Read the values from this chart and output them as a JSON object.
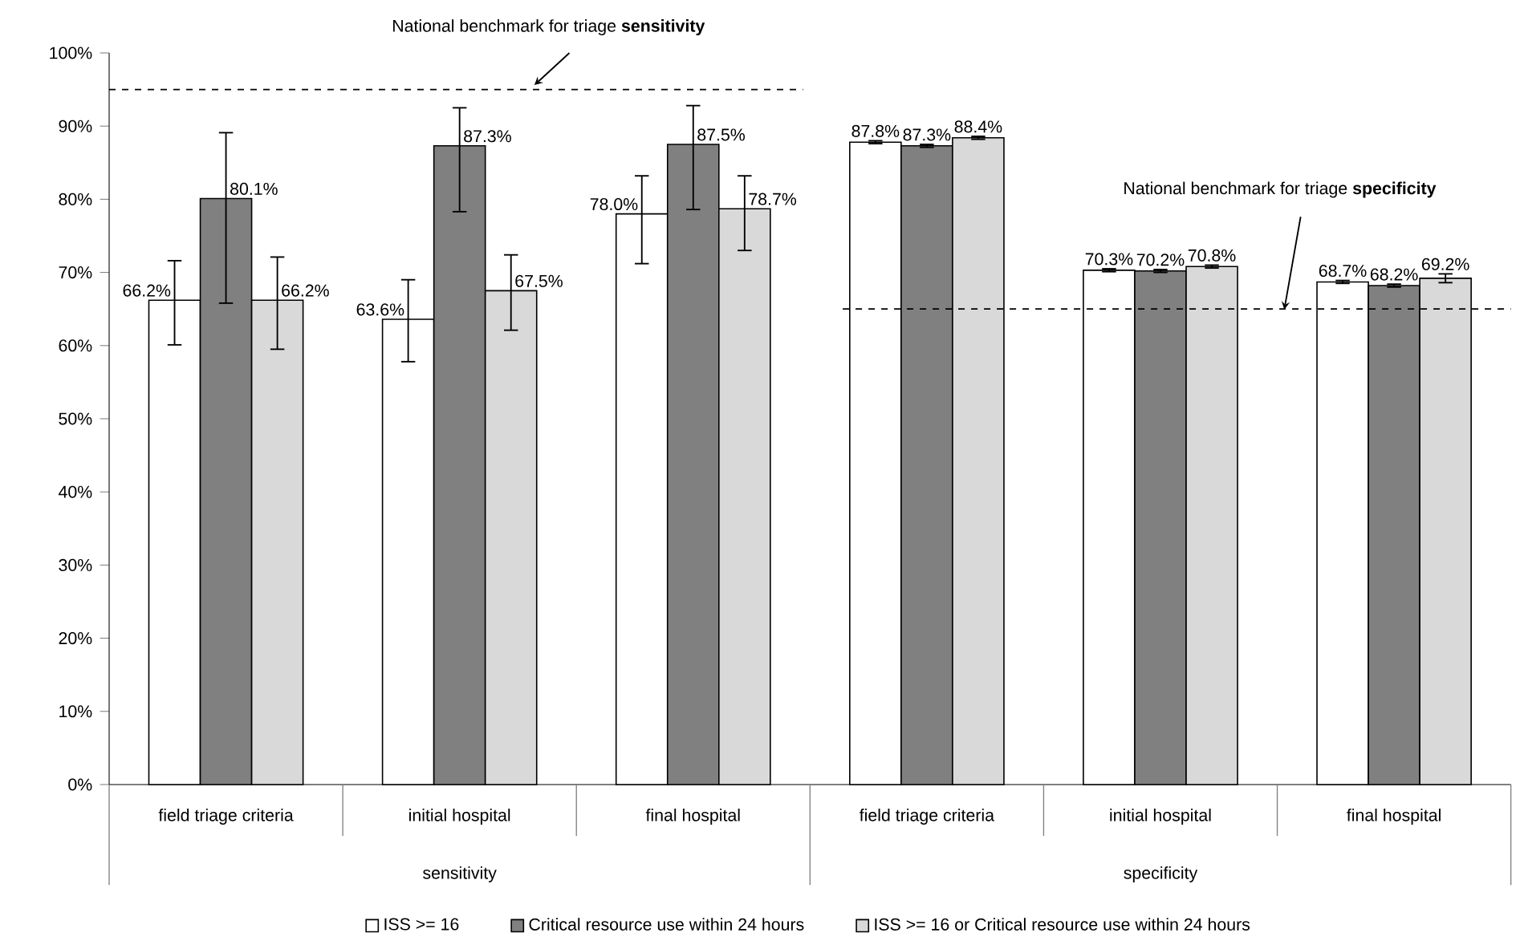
{
  "chart_data": {
    "type": "bar",
    "categories": [
      "field triage criteria",
      "initial hospital",
      "final hospital",
      "field triage criteria",
      "initial hospital",
      "final hospital"
    ],
    "series": [
      {
        "name": "ISS >= 16",
        "color": "#ffffff",
        "values": [
          66.2,
          63.6,
          78.0,
          87.8,
          70.3,
          68.7
        ],
        "value_labels": [
          "66.2%",
          "63.6%",
          "78.0%",
          "87.8%",
          "70.3%",
          "68.7%"
        ],
        "errors": [
          [
            60.1,
            71.6
          ],
          [
            57.8,
            69.0
          ],
          [
            71.2,
            83.2
          ],
          [
            87.6,
            88.0
          ],
          [
            70.1,
            70.5
          ],
          [
            68.5,
            68.9
          ]
        ]
      },
      {
        "name": "Critical resource use within 24 hours",
        "color": "#808080",
        "values": [
          80.1,
          87.3,
          87.5,
          87.3,
          70.2,
          68.2
        ],
        "value_labels": [
          "80.1%",
          "87.3%",
          "87.5%",
          "87.3%",
          "70.2%",
          "68.2%"
        ],
        "errors": [
          [
            65.8,
            89.1
          ],
          [
            78.3,
            92.5
          ],
          [
            78.6,
            92.8
          ],
          [
            87.1,
            87.5
          ],
          [
            70.0,
            70.4
          ],
          [
            68.0,
            68.4
          ]
        ]
      },
      {
        "name": "ISS >= 16 or Critical resource use within 24 hours",
        "color": "#d9d9d9",
        "values": [
          66.2,
          67.5,
          78.7,
          88.4,
          70.8,
          69.2
        ],
        "value_labels": [
          "66.2%",
          "67.5%",
          "78.7%",
          "88.4%",
          "70.8%",
          "69.2%"
        ],
        "errors": [
          [
            59.5,
            72.1
          ],
          [
            62.1,
            72.4
          ],
          [
            73.0,
            83.2
          ],
          [
            88.2,
            88.6
          ],
          [
            70.6,
            71.0
          ],
          [
            68.6,
            69.8
          ]
        ]
      }
    ],
    "ylim": [
      0,
      100
    ],
    "yticks": [
      {
        "value": 0,
        "label": "0%"
      },
      {
        "value": 10,
        "label": "10%"
      },
      {
        "value": 20,
        "label": "20%"
      },
      {
        "value": 30,
        "label": "30%"
      },
      {
        "value": 40,
        "label": "40%"
      },
      {
        "value": 50,
        "label": "50%"
      },
      {
        "value": 60,
        "label": "60%"
      },
      {
        "value": 70,
        "label": "70%"
      },
      {
        "value": 80,
        "label": "80%"
      },
      {
        "value": 90,
        "label": "90%"
      },
      {
        "value": 100,
        "label": "100%"
      }
    ],
    "ref_lines": [
      {
        "axis": "y",
        "value": 95,
        "label": "National benchmark for triage **sensitivity**",
        "color": "#000000",
        "line_style": "dashed"
      },
      {
        "axis": "y",
        "value": 65,
        "label": "National benchmark for triage **specificity**",
        "color": "#000000",
        "line_style": "dashed"
      }
    ],
    "annotations": [
      "sensitivity",
      "specificity"
    ],
    "legend": "bottom"
  }
}
